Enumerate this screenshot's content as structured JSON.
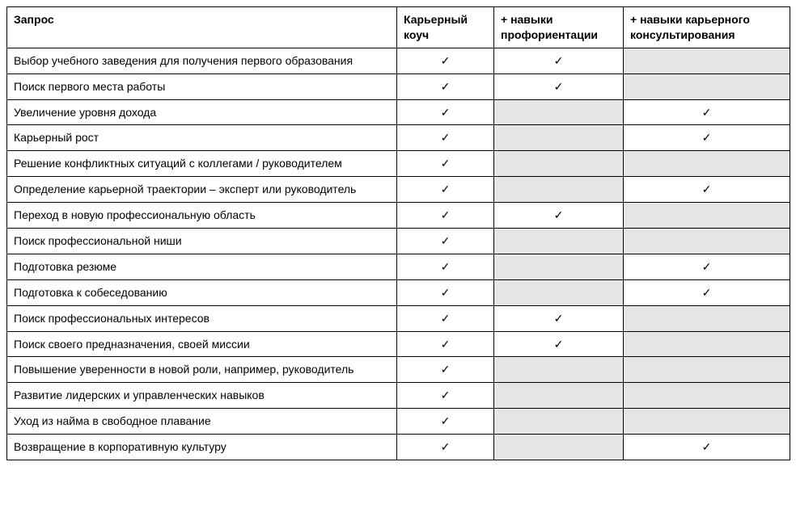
{
  "table": {
    "type": "table",
    "check_symbol": "✓",
    "background_color": "#ffffff",
    "gray_color": "#e5e5e5",
    "border_color": "#000000",
    "columns": [
      {
        "label": "Запрос",
        "key": "request"
      },
      {
        "label": "Карьерный коуч",
        "key": "coach"
      },
      {
        "label": "+ навыки профориентации",
        "key": "prof"
      },
      {
        "label": "+ навыки карьерного консультирования",
        "key": "consult"
      }
    ],
    "rows": [
      {
        "request": "Выбор учебного заведения для получения первого образования",
        "coach": true,
        "prof": true,
        "consult": "gray"
      },
      {
        "request": "Поиск первого места работы",
        "coach": true,
        "prof": true,
        "consult": "gray"
      },
      {
        "request": "Увеличение уровня дохода",
        "coach": true,
        "prof": "gray",
        "consult": true
      },
      {
        "request": "Карьерный рост",
        "coach": true,
        "prof": "gray",
        "consult": true
      },
      {
        "request": "Решение конфликтных ситуаций с коллегами / руководителем",
        "coach": true,
        "prof": "gray",
        "consult": "gray"
      },
      {
        "request": "Определение карьерной траектории – эксперт или руководитель",
        "coach": true,
        "prof": "gray",
        "consult": true
      },
      {
        "request": "Переход в новую профессиональную область",
        "coach": true,
        "prof": true,
        "consult": "gray"
      },
      {
        "request": "Поиск профессиональной ниши",
        "coach": true,
        "prof": "gray",
        "consult": "gray"
      },
      {
        "request": "Подготовка резюме",
        "coach": true,
        "prof": "gray",
        "consult": true
      },
      {
        "request": "Подготовка к собеседованию",
        "coach": true,
        "prof": "gray",
        "consult": true
      },
      {
        "request": "Поиск профессиональных интересов",
        "coach": true,
        "prof": true,
        "consult": "gray"
      },
      {
        "request": "Поиск своего предназначения, своей миссии",
        "coach": true,
        "prof": true,
        "consult": "gray"
      },
      {
        "request": "Повышение уверенности в новой роли, например, руководитель",
        "coach": true,
        "prof": "gray",
        "consult": "gray"
      },
      {
        "request": "Развитие лидерских и управленческих навыков",
        "coach": true,
        "prof": "gray",
        "consult": "gray"
      },
      {
        "request": "Уход из найма в свободное плавание",
        "coach": true,
        "prof": "gray",
        "consult": "gray"
      },
      {
        "request": "Возвращение в корпоративную культуру",
        "coach": true,
        "prof": "gray",
        "consult": true
      }
    ]
  }
}
